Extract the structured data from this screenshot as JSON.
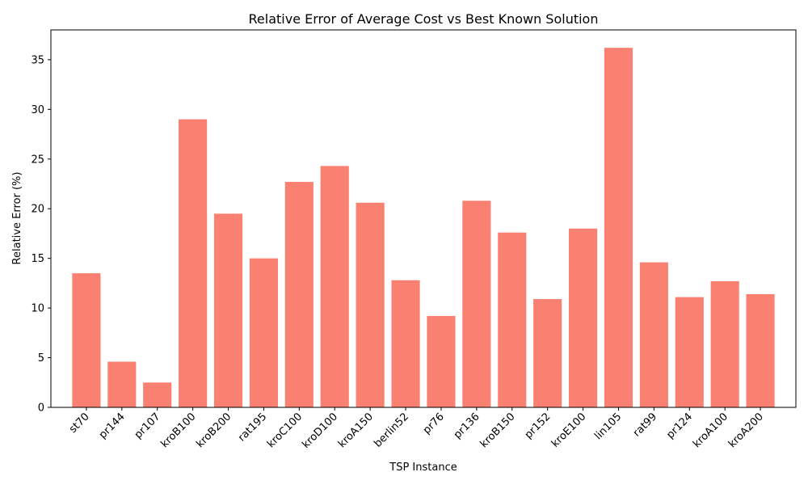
{
  "chart_data": {
    "type": "bar",
    "title": "Relative Error of Average Cost vs Best Known Solution",
    "xlabel": "TSP Instance",
    "ylabel": "Relative Error (%)",
    "categories": [
      "st70",
      "pr144",
      "pr107",
      "kroB100",
      "kroB200",
      "rat195",
      "kroC100",
      "kroD100",
      "kroA150",
      "berlin52",
      "pr76",
      "pr136",
      "kroB150",
      "pr152",
      "kroE100",
      "lin105",
      "rat99",
      "pr124",
      "kroA100",
      "kroA200"
    ],
    "values": [
      13.5,
      4.6,
      2.5,
      29.0,
      19.5,
      15.0,
      22.7,
      24.3,
      20.6,
      12.8,
      9.2,
      20.8,
      17.6,
      10.9,
      18.0,
      36.2,
      14.6,
      11.1,
      12.7,
      11.4
    ],
    "ylim": [
      0,
      38
    ],
    "yticks": [
      0,
      5,
      10,
      15,
      20,
      25,
      30,
      35
    ],
    "bar_color": "#fa8072",
    "grid": false,
    "legend": "none"
  }
}
